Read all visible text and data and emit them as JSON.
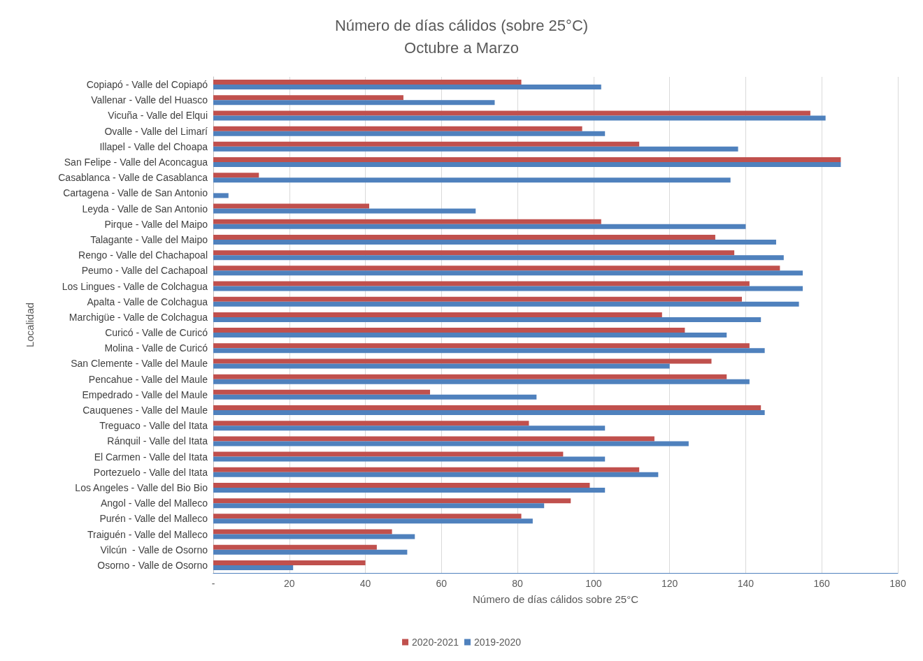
{
  "chart_data": {
    "type": "bar",
    "orientation": "horizontal",
    "title": "Número de días cálidos (sobre 25°C)",
    "subtitle": "Octubre a Marzo",
    "xlabel": "Número de días cálidos sobre 25°C",
    "ylabel": "Localidad",
    "categories": [
      "Copiapó - Valle del Copiapó",
      "Vallenar - Valle del Huasco",
      "Vicuña - Valle del Elqui",
      "Ovalle - Valle del Limarí",
      "Illapel - Valle del Choapa",
      "San Felipe - Valle del Aconcagua",
      "Casablanca - Valle de Casablanca",
      "Cartagena - Valle de San Antonio",
      "Leyda - Valle de San Antonio",
      "Pirque - Valle del Maipo",
      "Talagante - Valle del Maipo",
      "Rengo - Valle del Chachapoal",
      "Peumo - Valle del Cachapoal",
      "Los Lingues - Valle de Colchagua",
      "Apalta - Valle de Colchagua",
      "Marchigüe - Valle de Colchagua",
      "Curicó - Valle de Curicó",
      "Molina - Valle de Curicó",
      "San Clemente - Valle del Maule",
      "Pencahue - Valle del Maule",
      "Empedrado - Valle del Maule",
      "Cauquenes - Valle del Maule",
      "Treguaco - Valle del Itata",
      "Ránquil - Valle del Itata",
      "El Carmen - Valle del Itata",
      "Portezuelo - Valle del Itata",
      "Los Angeles - Valle del Bio Bio",
      "Angol - Valle del Malleco",
      "Purén - Valle del Malleco",
      "Traiguén - Valle del Malleco",
      "Vilcún  - Valle de Osorno",
      "Osorno - Valle de Osorno"
    ],
    "series": [
      {
        "name": "2020-2021",
        "color": "#c0504d",
        "values": [
          81,
          50,
          157,
          97,
          112,
          165,
          12,
          null,
          41,
          102,
          132,
          137,
          149,
          141,
          139,
          118,
          124,
          141,
          131,
          135,
          57,
          144,
          83,
          116,
          92,
          112,
          99,
          94,
          81,
          47,
          43,
          40
        ]
      },
      {
        "name": "2019-2020",
        "color": "#4f81bd",
        "values": [
          102,
          74,
          161,
          103,
          138,
          165,
          136,
          4,
          69,
          140,
          148,
          150,
          155,
          155,
          154,
          144,
          135,
          145,
          120,
          141,
          85,
          145,
          103,
          125,
          103,
          117,
          103,
          87,
          84,
          53,
          51,
          21
        ]
      }
    ],
    "xlim": [
      0,
      180
    ],
    "xticks": [
      {
        "value": 0,
        "label": "-"
      },
      20,
      40,
      60,
      80,
      100,
      120,
      140,
      160,
      180
    ],
    "grid": "x",
    "legend": "bottom"
  }
}
